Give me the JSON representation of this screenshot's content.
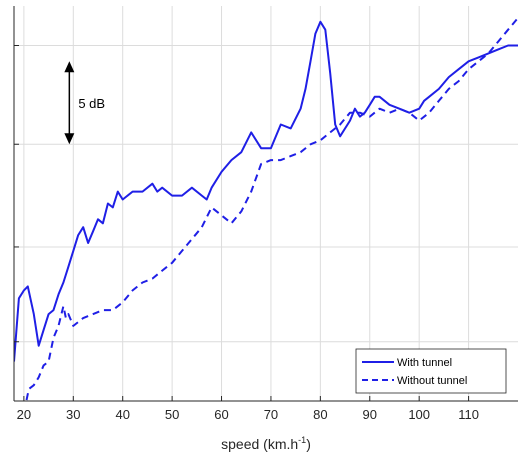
{
  "chart_data": {
    "type": "line",
    "xlabel_base": "speed (km.h",
    "xlabel_sup": "-1",
    "xlabel_end": ")",
    "ylabel": "",
    "xlim": [
      18,
      120
    ],
    "ylim": [
      0,
      10
    ],
    "grid": true,
    "show_y_tick_labels": false,
    "x_ticks": [
      20,
      30,
      40,
      50,
      60,
      70,
      80,
      90,
      100,
      110
    ],
    "y_ticks": [
      1.5,
      3.9,
      6.5,
      9.0
    ],
    "legend_position": "bottom-right",
    "colors": {
      "series": "#1f1fe6",
      "grid": "#dcdcdc",
      "axis": "#262626"
    },
    "annotation": {
      "text": "5 dB",
      "arrow_x": 29.2,
      "arrow_y_top": 8.6,
      "arrow_y_bottom": 6.5
    },
    "series": [
      {
        "name": "With tunnel",
        "style": "solid",
        "x": [
          18,
          19,
          20,
          20.8,
          22,
          23,
          24,
          25,
          26,
          27,
          28,
          29,
          30,
          31,
          32,
          33,
          34,
          35,
          36,
          37,
          38,
          39,
          40,
          42,
          44,
          46,
          47,
          48,
          50,
          52,
          54,
          56,
          57,
          58,
          60,
          62,
          64,
          66,
          68,
          70,
          72,
          74,
          76,
          77,
          78,
          79,
          80,
          81,
          82,
          83,
          84,
          85,
          86,
          87,
          88,
          89,
          90,
          91,
          92,
          94,
          96,
          98,
          100,
          101,
          102,
          104,
          106,
          108,
          110,
          112,
          114,
          116,
          118,
          120
        ],
        "y": [
          1.0,
          2.6,
          2.8,
          2.9,
          2.2,
          1.4,
          1.8,
          2.2,
          2.3,
          2.7,
          3.0,
          3.4,
          3.8,
          4.2,
          4.4,
          4.0,
          4.3,
          4.6,
          4.5,
          5.0,
          4.9,
          5.3,
          5.1,
          5.3,
          5.3,
          5.5,
          5.3,
          5.4,
          5.2,
          5.2,
          5.4,
          5.2,
          5.1,
          5.4,
          5.8,
          6.1,
          6.3,
          6.8,
          6.4,
          6.4,
          7.0,
          6.9,
          7.4,
          7.9,
          8.6,
          9.3,
          9.6,
          9.4,
          8.3,
          7.0,
          6.7,
          6.9,
          7.1,
          7.4,
          7.2,
          7.3,
          7.5,
          7.7,
          7.7,
          7.5,
          7.4,
          7.3,
          7.4,
          7.6,
          7.7,
          7.9,
          8.2,
          8.4,
          8.6,
          8.7,
          8.8,
          8.9,
          9.0,
          9.0
        ]
      },
      {
        "name": "Without tunnel",
        "style": "dashed",
        "x": [
          18,
          19,
          20,
          21,
          22,
          23,
          24,
          25,
          26,
          27,
          28,
          28.5,
          29,
          30,
          31,
          32,
          34,
          36,
          38,
          40,
          42,
          44,
          46,
          48,
          50,
          52,
          54,
          56,
          58,
          60,
          62,
          64,
          66,
          68,
          70,
          72,
          74,
          76,
          78,
          80,
          82,
          84,
          86,
          88,
          90,
          92,
          94,
          96,
          98,
          100,
          102,
          104,
          106,
          108,
          110,
          112,
          114,
          116,
          118,
          120
        ],
        "y": [
          -0.8,
          -0.4,
          -0.3,
          0.3,
          0.4,
          0.6,
          0.9,
          1.0,
          1.6,
          1.9,
          2.4,
          2.1,
          2.2,
          1.9,
          2.0,
          2.1,
          2.2,
          2.3,
          2.3,
          2.5,
          2.8,
          3.0,
          3.1,
          3.3,
          3.5,
          3.8,
          4.1,
          4.4,
          4.9,
          4.7,
          4.5,
          4.8,
          5.3,
          6.0,
          6.1,
          6.1,
          6.2,
          6.3,
          6.5,
          6.6,
          6.8,
          7.0,
          7.3,
          7.3,
          7.2,
          7.4,
          7.3,
          7.4,
          7.3,
          7.1,
          7.3,
          7.6,
          7.9,
          8.1,
          8.4,
          8.6,
          8.8,
          9.1,
          9.4,
          9.7
        ]
      }
    ]
  }
}
